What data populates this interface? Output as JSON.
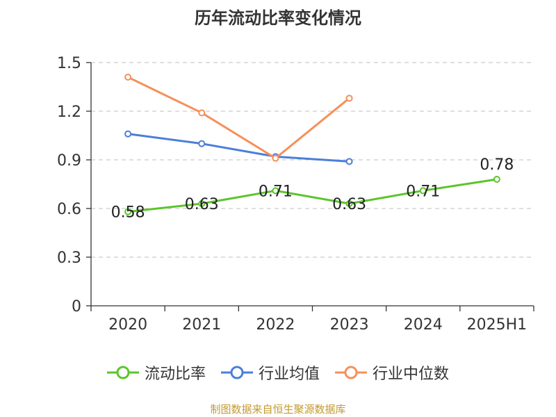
{
  "chart_data": {
    "type": "line",
    "title": "历年流动比率变化情况",
    "categories": [
      "2020",
      "2021",
      "2022",
      "2023",
      "2024",
      "2025H1"
    ],
    "ylim": [
      0,
      1.5
    ],
    "yticks": [
      "0",
      "0.3",
      "0.6",
      "0.9",
      "1.2",
      "1.5"
    ],
    "ytick_values": [
      0,
      0.3,
      0.6,
      0.9,
      1.2,
      1.5
    ],
    "grid": true,
    "legend_position": "bottom",
    "series": [
      {
        "name": "流动比率",
        "color": "#5bc52b",
        "values": [
          0.58,
          0.63,
          0.71,
          0.63,
          0.71,
          0.78
        ],
        "labels": [
          "0.58",
          "0.63",
          "0.71",
          "0.63",
          "0.71",
          "0.78"
        ]
      },
      {
        "name": "行业均值",
        "color": "#4a7fd9",
        "values": [
          1.06,
          1.0,
          0.92,
          0.89,
          null,
          null
        ]
      },
      {
        "name": "行业中位数",
        "color": "#f5905a",
        "values": [
          1.41,
          1.19,
          0.91,
          1.28,
          null,
          null
        ]
      }
    ],
    "source": "制图数据来自恒生聚源数据库"
  }
}
